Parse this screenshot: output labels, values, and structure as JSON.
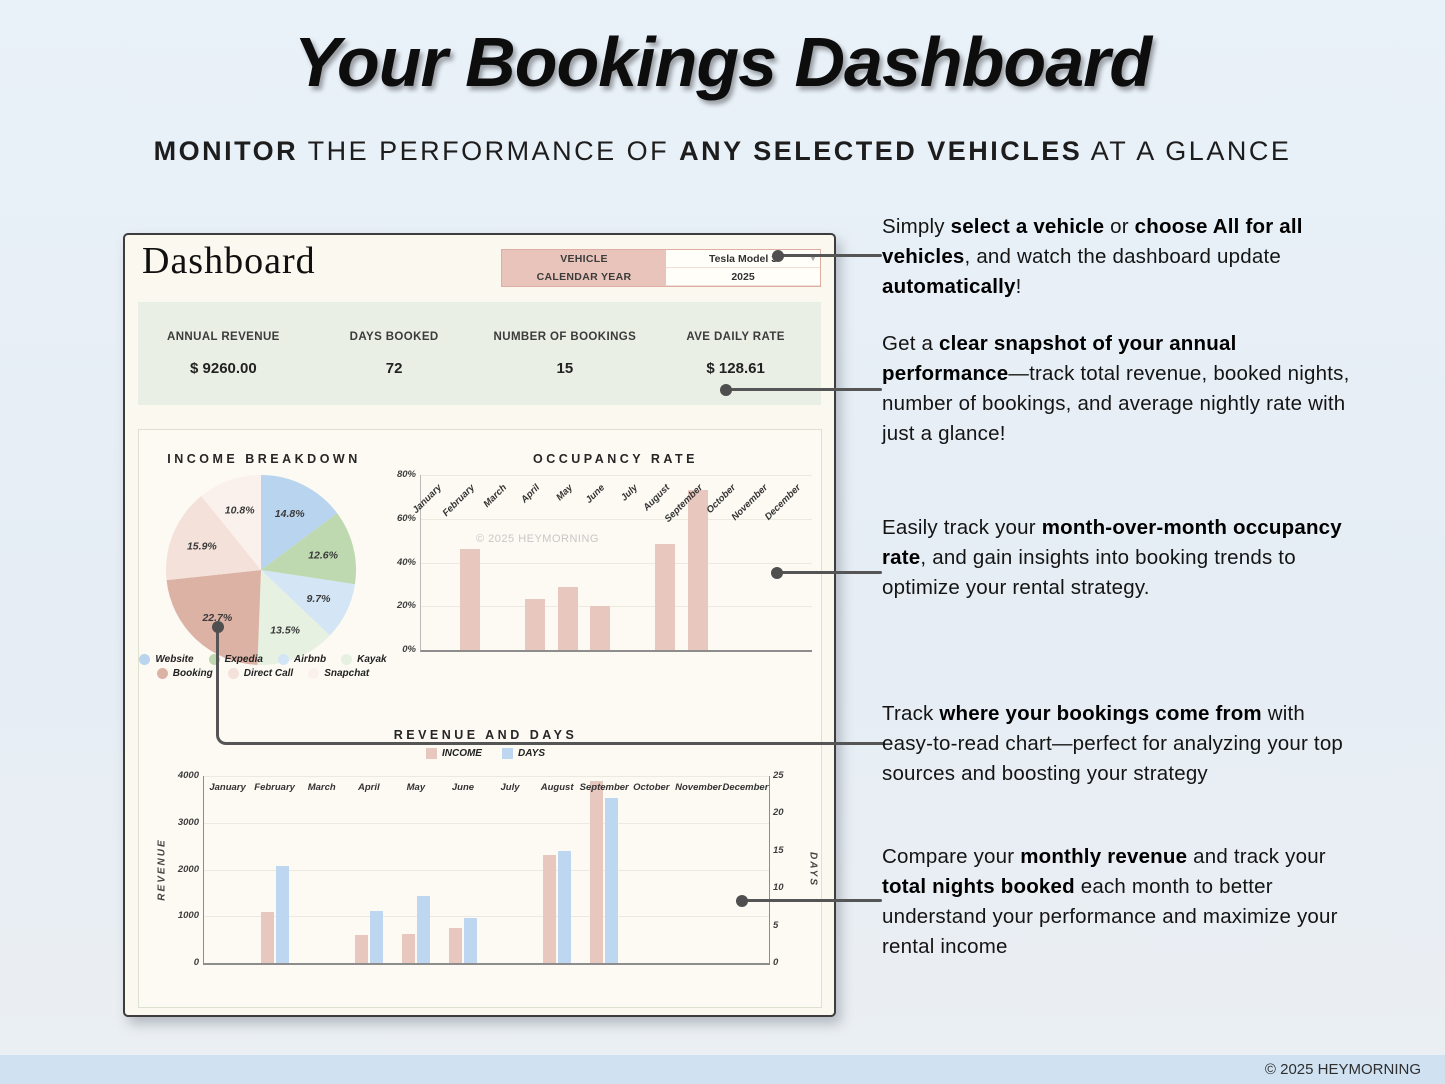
{
  "page": {
    "title": "Your Bookings Dashboard",
    "subtitle_segments": [
      {
        "t": "MONITOR",
        "b": true
      },
      {
        "t": " THE PERFORMANCE OF ",
        "b": false
      },
      {
        "t": "ANY SELECTED VEHICLES",
        "b": true
      },
      {
        "t": " AT A GLANCE",
        "b": false
      }
    ],
    "footer": "© 2025 HEYMORNING"
  },
  "dashboard": {
    "title": "Dashboard",
    "selector": {
      "vehicle_label": "VEHICLE",
      "vehicle_value": "Tesla Model 3",
      "year_label": "CALENDAR YEAR",
      "year_value": "2025"
    },
    "kpis": [
      {
        "label": "ANNUAL REVENUE",
        "value": "$ 9260.00"
      },
      {
        "label": "DAYS BOOKED",
        "value": "72"
      },
      {
        "label": "NUMBER OF BOOKINGS",
        "value": "15"
      },
      {
        "label": "AVE DAILY RATE",
        "value": "$ 128.61"
      }
    ]
  },
  "annotations": [
    {
      "segments": [
        {
          "t": "Simply ",
          "b": false
        },
        {
          "t": "select a vehicle",
          "b": true
        },
        {
          "t": " or ",
          "b": false
        },
        {
          "t": "choose All for all vehicles",
          "b": true
        },
        {
          "t": ", and watch the dashboard update ",
          "b": false
        },
        {
          "t": "automatically",
          "b": true
        },
        {
          "t": "!",
          "b": false
        }
      ]
    },
    {
      "segments": [
        {
          "t": "Get a ",
          "b": false
        },
        {
          "t": "clear snapshot of your annual performance",
          "b": true
        },
        {
          "t": "—track total revenue, booked nights, number of bookings, and average nightly rate with just a glance!",
          "b": false
        }
      ]
    },
    {
      "segments": [
        {
          "t": "Easily track your ",
          "b": false
        },
        {
          "t": "month-over-month occupancy rate",
          "b": true
        },
        {
          "t": ", and gain insights into booking trends to optimize your rental strategy.",
          "b": false
        }
      ]
    },
    {
      "segments": [
        {
          "t": "Track ",
          "b": false
        },
        {
          "t": "where your bookings come from",
          "b": true
        },
        {
          "t": " with easy-to-read chart—perfect for analyzing your top sources and boosting your strategy",
          "b": false
        }
      ]
    },
    {
      "segments": [
        {
          "t": "Compare your ",
          "b": false
        },
        {
          "t": "monthly revenue",
          "b": true
        },
        {
          "t": " and track your ",
          "b": false
        },
        {
          "t": "total nights booked",
          "b": true
        },
        {
          "t": " each month to better understand your performance and maximize your rental income",
          "b": false
        }
      ]
    }
  ],
  "chart_data": [
    {
      "id": "income_breakdown",
      "type": "pie",
      "title": "INCOME BREAKDOWN",
      "labels": [
        "Website",
        "Expedia",
        "Airbnb",
        "Kayak",
        "Booking",
        "Direct Call",
        "Snapchat"
      ],
      "values": [
        14.8,
        12.6,
        9.7,
        13.5,
        22.7,
        15.9,
        10.8
      ],
      "value_labels": [
        "14.8%",
        "12.6%",
        "9.7%",
        "13.5%",
        "22.7%",
        "15.9%",
        "10.8%"
      ],
      "colors": [
        "#b9d4ee",
        "#bed8b0",
        "#d4e5f6",
        "#e6f1e1",
        "#dcb2a5",
        "#f4e1da",
        "#fbf1ec"
      ],
      "legend_rows": [
        [
          "Website",
          "Expedia",
          "Airbnb",
          "Kayak"
        ],
        [
          "Booking",
          "Direct Call",
          "Snapchat"
        ]
      ],
      "legend_position": "bottom"
    },
    {
      "id": "occupancy_rate",
      "type": "bar",
      "title": "OCCUPANCY RATE",
      "categories": [
        "January",
        "February",
        "March",
        "April",
        "May",
        "June",
        "July",
        "August",
        "September",
        "October",
        "November",
        "December"
      ],
      "values": [
        0,
        46.4,
        0,
        23.3,
        29.0,
        20.0,
        0,
        48.4,
        73.3,
        0,
        0,
        0
      ],
      "ylim": [
        0,
        80
      ],
      "yticks": [
        "0%",
        "20%",
        "40%",
        "60%",
        "80%"
      ],
      "ytick_values": [
        0,
        20,
        40,
        60,
        80
      ],
      "bar_color": "#e8c7be",
      "grid": true,
      "watermark": "© 2025 HEYMORNING"
    },
    {
      "id": "revenue_and_days",
      "type": "bar",
      "title": "REVENUE AND DAYS",
      "categories": [
        "January",
        "February",
        "March",
        "April",
        "May",
        "June",
        "July",
        "August",
        "September",
        "October",
        "November",
        "December"
      ],
      "series": [
        {
          "name": "INCOME",
          "values": [
            0,
            1100,
            0,
            600,
            620,
            740,
            0,
            2300,
            3900,
            0,
            0,
            0
          ],
          "color": "#e8c7be",
          "axis": "left"
        },
        {
          "name": "DAYS",
          "values": [
            0,
            13,
            0,
            7,
            9,
            6,
            0,
            15,
            22,
            0,
            0,
            0
          ],
          "color": "#bdd7f0",
          "axis": "right"
        }
      ],
      "left_axis": {
        "label": "REVENUE",
        "lim": [
          0,
          4000
        ],
        "ticks": [
          "0",
          "1000",
          "2000",
          "3000",
          "4000"
        ],
        "tick_values": [
          0,
          1000,
          2000,
          3000,
          4000
        ]
      },
      "right_axis": {
        "label": "DAYS",
        "lim": [
          0,
          25
        ],
        "ticks": [
          "0",
          "5",
          "10",
          "15",
          "20",
          "25"
        ],
        "tick_values": [
          0,
          5,
          10,
          15,
          20,
          25
        ]
      },
      "grid": true,
      "legend_position": "top"
    }
  ],
  "colors": {
    "page_bg_top": "#e9f1f9",
    "panel_bg": "#fbf8ef",
    "kpi_bg": "#e9efe4",
    "selector_label_bg": "#e9c4ba",
    "income_bar": "#e8c7be",
    "days_bar": "#bdd7f0",
    "footer_bg": "#d0e2f2",
    "connector": "#555555"
  }
}
